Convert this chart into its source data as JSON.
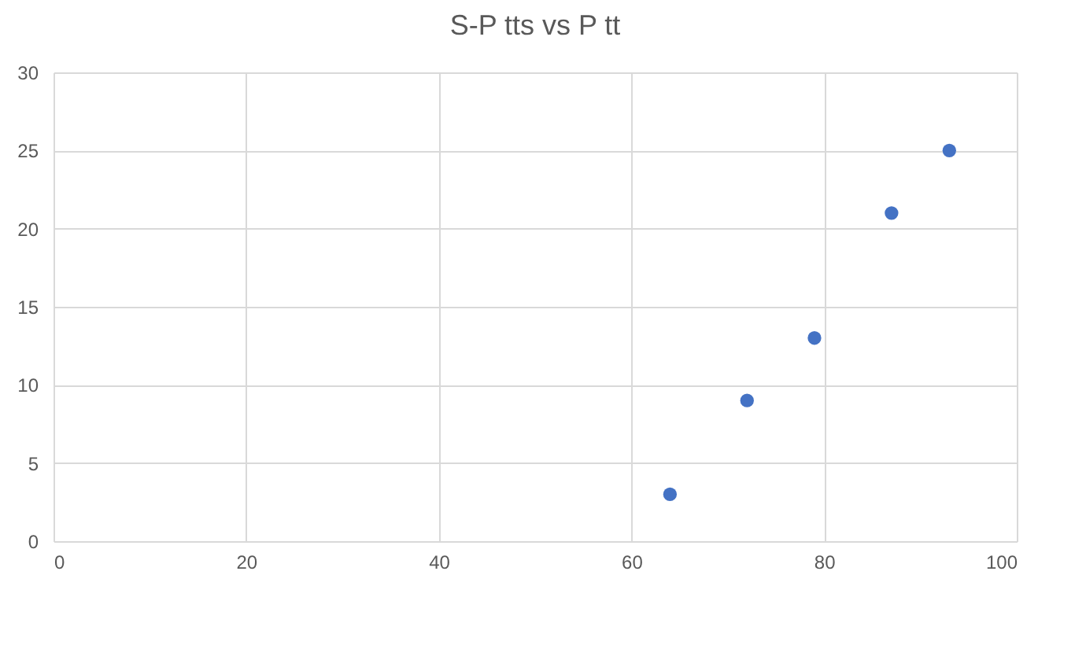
{
  "chart_data": {
    "type": "scatter",
    "title": "S-P tts vs P tt",
    "x": [
      64,
      72,
      79,
      87,
      93
    ],
    "series": [
      {
        "color": "#4472c4",
        "values": [
          3,
          9,
          13,
          21,
          25
        ]
      }
    ],
    "xlim": [
      0,
      100
    ],
    "xticks": [
      0,
      20,
      40,
      60,
      80,
      100
    ],
    "ylim": [
      0,
      30
    ],
    "yticks": [
      0,
      5,
      10,
      15,
      20,
      25,
      30
    ],
    "grid": true,
    "marker": "circle"
  }
}
